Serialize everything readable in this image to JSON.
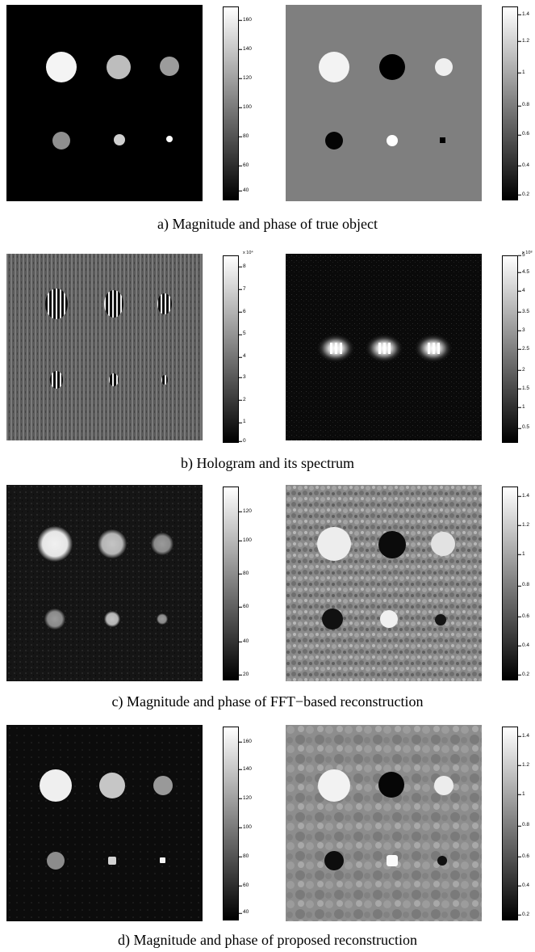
{
  "panels": [
    {
      "caption": "a) Magnitude and phase of true object",
      "left_bar": {
        "ticks": [
          "160",
          "140",
          "120",
          "100",
          "80",
          "60",
          "40"
        ],
        "ticks_frac": [
          0.07,
          0.22,
          0.37,
          0.52,
          0.67,
          0.82,
          0.95
        ]
      },
      "right_bar": {
        "ticks": [
          "1.4",
          "1.2",
          "1",
          "0.8",
          "0.6",
          "0.4",
          "0.2"
        ],
        "ticks_frac": [
          0.04,
          0.18,
          0.34,
          0.51,
          0.66,
          0.82,
          0.97
        ]
      }
    },
    {
      "caption": "b) Hologram and its spectrum",
      "left_bar": {
        "exp": "x 10⁴",
        "ticks": [
          "8",
          "7",
          "6",
          "5",
          "4",
          "3",
          "2",
          "1",
          "0"
        ],
        "ticks_frac": [
          0.06,
          0.18,
          0.3,
          0.42,
          0.54,
          0.65,
          0.77,
          0.89,
          0.99
        ]
      },
      "right_bar": {
        "exp": "x 10⁸",
        "ticks": [
          "5",
          "4.5",
          "4",
          "3.5",
          "3",
          "2.5",
          "2",
          "1.5",
          "1",
          "0.5"
        ],
        "ticks_frac": [
          0.0,
          0.09,
          0.19,
          0.3,
          0.4,
          0.5,
          0.61,
          0.71,
          0.81,
          0.92
        ]
      }
    },
    {
      "caption": "c) Magnitude and phase of FFT−based reconstruction",
      "left_bar": {
        "ticks": [
          "120",
          "100",
          "80",
          "60",
          "40",
          "20"
        ],
        "ticks_frac": [
          0.13,
          0.28,
          0.45,
          0.62,
          0.8,
          0.97
        ]
      },
      "right_bar": {
        "ticks": [
          "1.4",
          "1.2",
          "1",
          "0.8",
          "0.6",
          "0.4",
          "0.2"
        ],
        "ticks_frac": [
          0.05,
          0.2,
          0.35,
          0.51,
          0.67,
          0.82,
          0.97
        ]
      }
    },
    {
      "caption": "d) Magnitude and phase of proposed reconstruction",
      "left_bar": {
        "ticks": [
          "160",
          "140",
          "120",
          "100",
          "80",
          "60",
          "40"
        ],
        "ticks_frac": [
          0.08,
          0.22,
          0.37,
          0.52,
          0.67,
          0.82,
          0.96
        ]
      },
      "right_bar": {
        "ticks": [
          "1.4",
          "1.2",
          "1",
          "0.8",
          "0.6",
          "0.4",
          "0.2"
        ],
        "ticks_frac": [
          0.05,
          0.2,
          0.35,
          0.51,
          0.67,
          0.82,
          0.97
        ]
      }
    }
  ]
}
